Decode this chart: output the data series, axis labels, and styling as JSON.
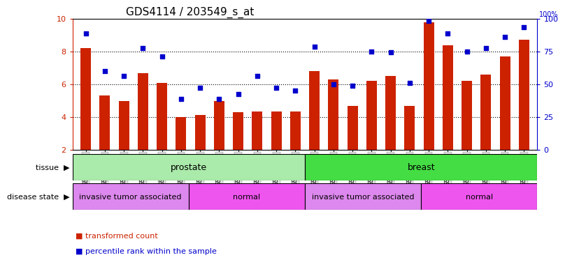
{
  "title": "GDS4114 / 203549_s_at",
  "samples": [
    "GSM662757",
    "GSM662759",
    "GSM662761",
    "GSM662763",
    "GSM662765",
    "GSM662767",
    "GSM662756",
    "GSM662758",
    "GSM662760",
    "GSM662762",
    "GSM662764",
    "GSM662766",
    "GSM662769",
    "GSM662771",
    "GSM662773",
    "GSM662775",
    "GSM662777",
    "GSM662779",
    "GSM662768",
    "GSM662770",
    "GSM662772",
    "GSM662774",
    "GSM662776",
    "GSM662778"
  ],
  "bar_values": [
    8.2,
    5.3,
    5.0,
    6.7,
    6.1,
    4.0,
    4.15,
    5.0,
    4.3,
    4.35,
    4.35,
    4.35,
    6.8,
    6.3,
    4.7,
    6.2,
    6.5,
    4.7,
    9.8,
    8.4,
    6.2,
    6.6,
    7.7,
    8.7
  ],
  "dot_values": [
    9.1,
    6.8,
    6.5,
    8.2,
    7.7,
    5.1,
    5.8,
    5.1,
    5.4,
    6.5,
    5.8,
    5.6,
    8.3,
    6.0,
    5.9,
    8.0,
    7.95,
    6.1,
    9.85,
    9.1,
    8.0,
    8.2,
    8.9,
    9.5
  ],
  "ylim_left": [
    2,
    10
  ],
  "ylim_right": [
    0,
    100
  ],
  "yticks_left": [
    2,
    4,
    6,
    8,
    10
  ],
  "yticks_right": [
    0,
    25,
    50,
    75,
    100
  ],
  "bar_color": "#cc2200",
  "dot_color": "#0000cc",
  "tissue_groups": [
    {
      "label": "prostate",
      "start": 0,
      "end": 12,
      "color": "#aaeaaa"
    },
    {
      "label": "breast",
      "start": 12,
      "end": 24,
      "color": "#44dd44"
    }
  ],
  "disease_groups": [
    {
      "label": "invasive tumor associated",
      "start": 0,
      "end": 6,
      "color": "#dd88ee"
    },
    {
      "label": "normal",
      "start": 6,
      "end": 12,
      "color": "#ee55ee"
    },
    {
      "label": "invasive tumor associated",
      "start": 12,
      "end": 18,
      "color": "#dd88ee"
    },
    {
      "label": "normal",
      "start": 18,
      "end": 24,
      "color": "#ee55ee"
    }
  ],
  "tissue_label": "tissue",
  "disease_label": "disease state",
  "legend_bar": "transformed count",
  "legend_dot": "percentile rank within the sample",
  "background_color": "#ffffff",
  "xticklabel_bg": "#dddddd",
  "grid_yticks": [
    4,
    6,
    8
  ]
}
